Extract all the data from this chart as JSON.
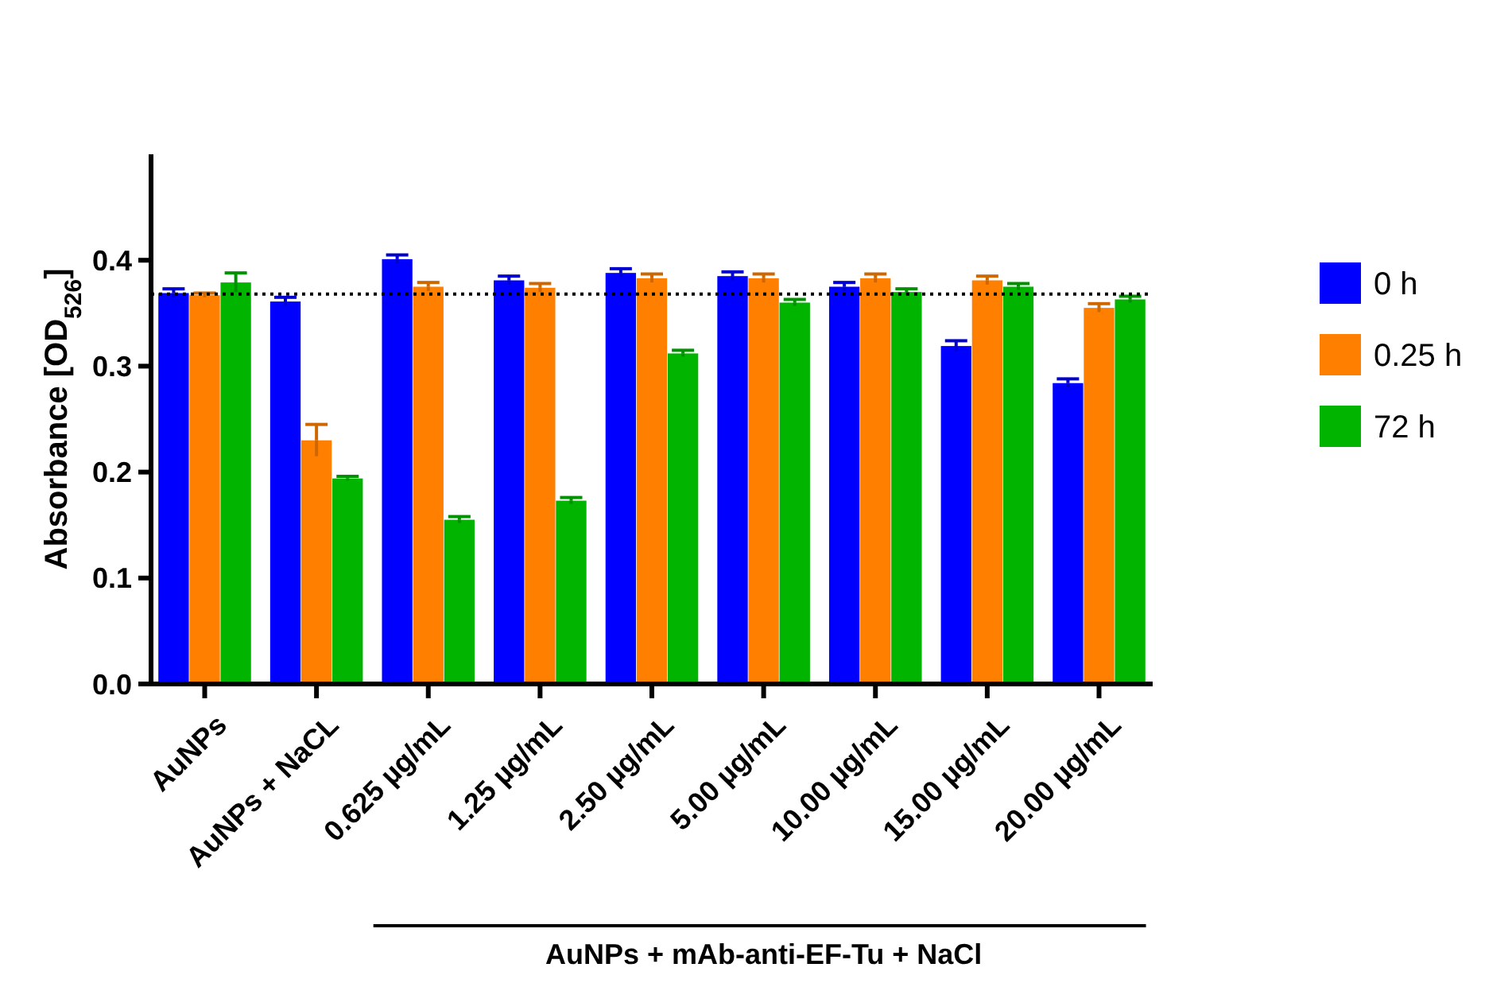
{
  "chart_data": {
    "type": "bar",
    "ylabel": "Absorbance [OD$_{526}$]",
    "categories": [
      "AuNPs",
      "AuNPs + NaCL",
      "0.625 µg/mL",
      "1.25 µg/mL",
      "2.50 µg/mL",
      "5.00 µg/mL",
      "10.00 µg/mL",
      "15.00 µg/mL",
      "20.00 µg/mL"
    ],
    "series": [
      {
        "name": "0 h",
        "color": "#0000ff",
        "values": [
          0.369,
          0.361,
          0.401,
          0.381,
          0.388,
          0.385,
          0.375,
          0.319,
          0.284
        ],
        "errors": [
          0.004,
          0.004,
          0.004,
          0.004,
          0.004,
          0.004,
          0.004,
          0.005,
          0.004
        ]
      },
      {
        "name": "0.25 h",
        "color": "#ff8000",
        "values": [
          0.367,
          0.23,
          0.375,
          0.374,
          0.383,
          0.383,
          0.383,
          0.381,
          0.355
        ],
        "errors": [
          0.002,
          0.015,
          0.004,
          0.004,
          0.004,
          0.004,
          0.004,
          0.004,
          0.004
        ]
      },
      {
        "name": "72 h",
        "color": "#00b400",
        "values": [
          0.379,
          0.194,
          0.155,
          0.173,
          0.312,
          0.36,
          0.37,
          0.375,
          0.363
        ],
        "errors": [
          0.009,
          0.002,
          0.003,
          0.003,
          0.003,
          0.003,
          0.003,
          0.003,
          0.003
        ]
      }
    ],
    "ylim": [
      0,
      0.5
    ],
    "yticks": [
      {
        "value": 0,
        "label": "0.0"
      },
      0.1,
      0.2,
      0.3,
      0.4
    ],
    "grid": false,
    "legend": "right",
    "ref_lines": [
      {
        "axis": "y",
        "value": 0.368,
        "label": null,
        "line_style": "dotted",
        "color": "#000000"
      }
    ],
    "annotations": [
      "AuNPs + mAb-anti-EF-Tu + NaCl"
    ]
  }
}
